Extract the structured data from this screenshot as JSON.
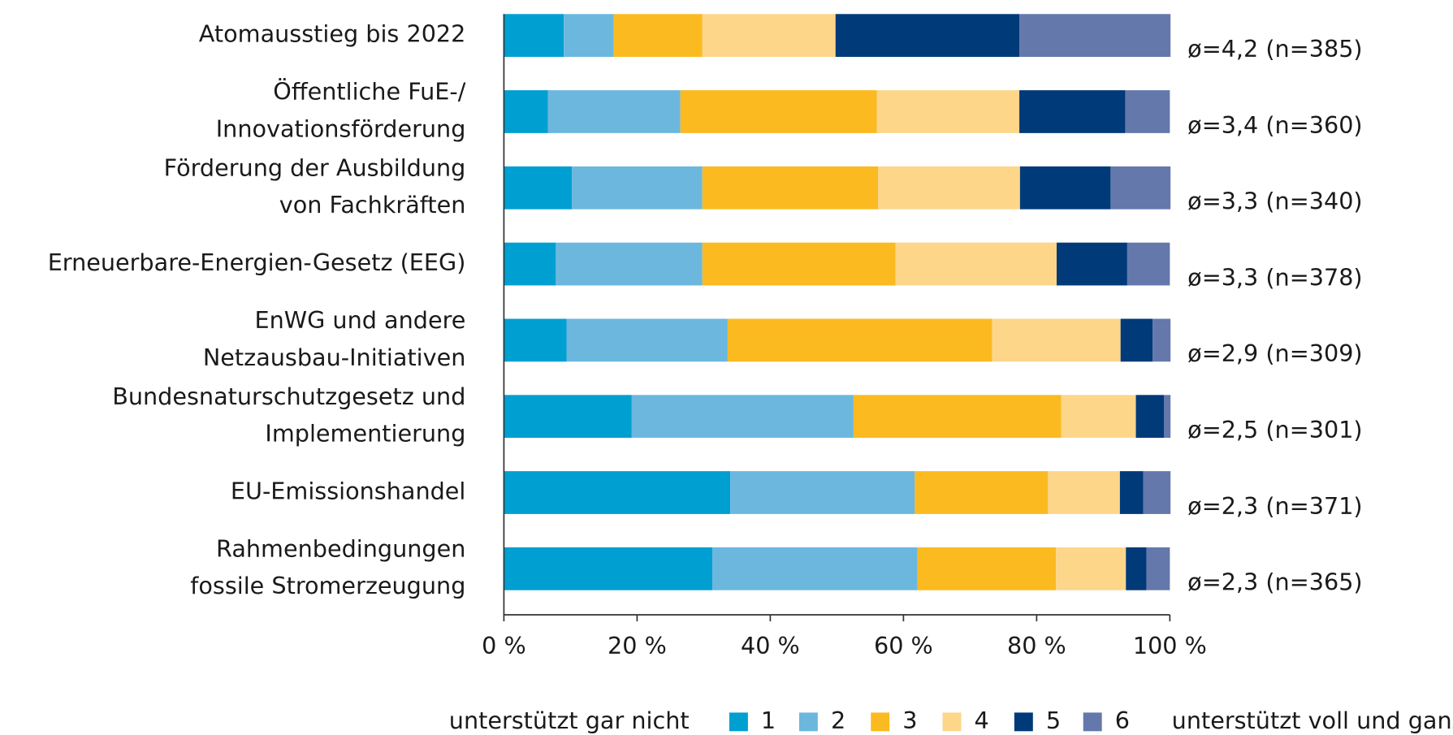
{
  "chart_data": {
    "type": "stacked-barh",
    "categories": [
      [
        "Atomausstieg bis 2022"
      ],
      [
        "Öffentliche FuE-/",
        "Innovationsförderung"
      ],
      [
        "Förderung der Ausbildung",
        "von Fachkräften"
      ],
      [
        "Erneuerbare-Energien-Gesetz (EEG)"
      ],
      [
        "EnWG und andere",
        "Netzausbau-Initiativen"
      ],
      [
        "Bundesnaturschutzgesetz und",
        "Implementierung"
      ],
      [
        "EU-Emissionshandel"
      ],
      [
        "Rahmenbedingungen",
        "fossile Stromerzeugung"
      ]
    ],
    "series": [
      {
        "name": "1",
        "color": "#009fd1",
        "values": [
          9.0,
          6.6,
          10.2,
          7.8,
          9.4,
          19.2,
          34.0,
          31.3
        ]
      },
      {
        "name": "2",
        "color": "#6cb7de",
        "values": [
          7.5,
          19.9,
          19.6,
          22.0,
          24.2,
          33.3,
          27.7,
          30.8
        ]
      },
      {
        "name": "3",
        "color": "#fbba20",
        "values": [
          13.3,
          29.5,
          26.4,
          29.0,
          39.7,
          31.2,
          20.0,
          20.8
        ]
      },
      {
        "name": "4",
        "color": "#fdd68a",
        "values": [
          20.0,
          21.4,
          21.3,
          24.2,
          19.3,
          11.2,
          10.8,
          10.5
        ]
      },
      {
        "name": "5",
        "color": "#003a78",
        "values": [
          27.6,
          15.9,
          13.6,
          10.6,
          4.8,
          4.2,
          3.5,
          3.1
        ]
      },
      {
        "name": "6",
        "color": "#6478ab",
        "values": [
          22.7,
          6.7,
          9.0,
          6.4,
          2.7,
          1.0,
          4.1,
          3.5
        ]
      }
    ],
    "annotations": [
      "ø=4,2 (n=385)",
      "ø=3,4 (n=360)",
      "ø=3,3 (n=340)",
      "ø=3,3 (n=378)",
      "ø=2,9 (n=309)",
      "ø=2,5 (n=301)",
      "ø=2,3 (n=371)",
      "ø=2,3 (n=365)"
    ],
    "legend_left": "unterstützt gar nicht",
    "legend_right": "unterstützt voll und ganz",
    "xlim": [
      0,
      100
    ],
    "xticks": [
      {
        "value": 0,
        "label": "0 %"
      },
      {
        "value": 20,
        "label": "20 %"
      },
      {
        "value": 40,
        "label": "40 %"
      },
      {
        "value": 60,
        "label": "60 %"
      },
      {
        "value": 80,
        "label": "80 %"
      },
      {
        "value": 100,
        "label": "100 %"
      }
    ],
    "legend": "bottom"
  }
}
